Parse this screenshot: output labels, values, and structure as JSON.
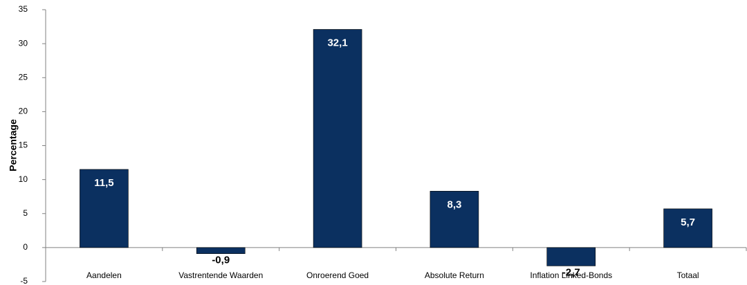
{
  "chart_data": {
    "type": "bar",
    "y_label": "Percentage",
    "categories": [
      "Aandelen",
      "Vastrentende Waarden",
      "Onroerend Goed",
      "Absolute Return",
      "Inflation Linked-Bonds",
      "Totaal"
    ],
    "values": [
      11.5,
      -0.9,
      32.1,
      8.3,
      -2.7,
      5.7
    ],
    "value_labels": [
      "11,5",
      "-0,9",
      "32,1",
      "8,3",
      "-2,7",
      "5,7"
    ],
    "color": "#0b3060",
    "ylim": [
      -5,
      35
    ],
    "yticks": [
      -5,
      0,
      5,
      10,
      15,
      20,
      25,
      30,
      35
    ],
    "grid": false
  }
}
